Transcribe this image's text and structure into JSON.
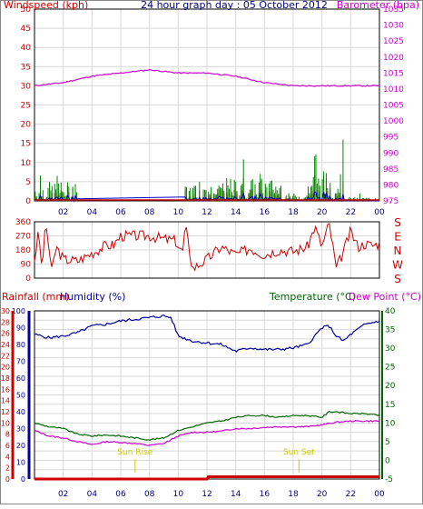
{
  "chart_data": [
    {
      "type": "line",
      "title": "24 hour graph day : 05 October 2012",
      "ylabel": "Windspeed (kph)",
      "y2label": "Barometer (hpa)",
      "ylim": [
        0,
        50
      ],
      "y2lim": [
        975,
        1035
      ],
      "yticks": [
        "0",
        "5",
        "10",
        "15",
        "20",
        "25",
        "30",
        "35",
        "40",
        "45",
        "50"
      ],
      "y2ticks": [
        "975",
        "980",
        "985",
        "990",
        "995",
        "1000",
        "1005",
        "1010",
        "1015",
        "1020",
        "1025",
        "1030",
        "1035"
      ],
      "xticks": [
        "02",
        "04",
        "06",
        "08",
        "10",
        "12",
        "14",
        "16",
        "18",
        "20",
        "22",
        "00"
      ],
      "colors": {
        "wind": "#cc0000",
        "gust": "#008800",
        "avgwind": "#0000cc",
        "barometer": "#cc00cc",
        "axis_left": "#cc0000",
        "axis_right": "#cc00cc",
        "title": "#000080"
      },
      "series": [
        {
          "name": "Barometer (hpa)",
          "x": [
            0,
            2,
            4,
            6,
            8,
            10,
            12,
            14,
            16,
            18,
            20,
            22,
            24
          ],
          "values": [
            1011,
            1012,
            1014,
            1015,
            1016,
            1015,
            1015,
            1014,
            1012,
            1011,
            1011,
            1011,
            1011
          ]
        },
        {
          "name": "Windspeed (kph)",
          "activity": [
            [
              0,
              3,
              5
            ],
            [
              6,
              10.4,
              0
            ],
            [
              10.4,
              13,
              4
            ],
            [
              13,
              17.5,
              6
            ],
            [
              17.5,
              19,
              2
            ],
            [
              19,
              21.5,
              8
            ],
            [
              21.5,
              24,
              1
            ]
          ]
        }
      ]
    },
    {
      "type": "line",
      "ylim": [
        0,
        360
      ],
      "yticks": [
        "0",
        "90",
        "180",
        "270",
        "360"
      ],
      "compass": [
        "S",
        "E",
        "N",
        "W",
        "S"
      ],
      "colors": {
        "line": "#cc0000"
      },
      "series": [
        {
          "name": "Wind direction",
          "x": [
            0,
            0.3,
            0.5,
            0.8,
            1.2,
            1.5,
            2,
            3,
            4,
            5,
            5.5,
            6,
            7,
            8,
            9,
            9.8,
            10.3,
            10.5,
            11,
            12,
            13,
            14,
            15,
            16,
            17,
            18,
            19,
            19.5,
            20,
            20.5,
            21,
            21.5,
            22,
            22.5,
            23,
            23.5,
            24
          ],
          "values": [
            120,
            300,
            60,
            350,
            40,
            200,
            120,
            110,
            160,
            210,
            210,
            270,
            270,
            270,
            250,
            240,
            160,
            330,
            60,
            120,
            200,
            150,
            190,
            150,
            180,
            170,
            200,
            330,
            200,
            350,
            60,
            170,
            300,
            200,
            220,
            210,
            220
          ]
        }
      ]
    },
    {
      "type": "line",
      "ylabel": "Rainfall (mm)",
      "y2label": "Humidity (%)",
      "y3label": "Temperature (°C)",
      "y4label": "Dew Point (°C)",
      "rain_ticks": [
        "0",
        "2",
        "4",
        "6",
        "8",
        "10",
        "12",
        "14",
        "16",
        "18",
        "20",
        "22",
        "24",
        "26",
        "28",
        "30"
      ],
      "hum_ticks": [
        "0",
        "10",
        "20",
        "30",
        "40",
        "50",
        "60",
        "70",
        "80",
        "90",
        "100"
      ],
      "temp_ticks": [
        "-5",
        "0",
        "5",
        "10",
        "15",
        "20",
        "25",
        "30",
        "35",
        "40"
      ],
      "xticks": [
        "02",
        "04",
        "06",
        "08",
        "10",
        "12",
        "14",
        "16",
        "18",
        "20",
        "22",
        "00"
      ],
      "annotations": [
        "Sun Rise",
        "Sun Set"
      ],
      "sunrise_hour": 7.0,
      "sunset_hour": 18.4,
      "colors": {
        "rain": "#cc0000",
        "humidity": "#000099",
        "temperature": "#006600",
        "dewpoint": "#cc00cc",
        "sun": "#cccc00"
      },
      "series": [
        {
          "name": "Humidity (%)",
          "x": [
            0,
            1,
            2,
            3,
            4,
            5,
            6,
            7,
            8,
            9,
            9.5,
            10,
            11,
            12,
            13,
            14,
            15,
            16,
            17,
            18,
            19,
            20,
            20.5,
            21,
            21.5,
            22,
            23,
            24
          ],
          "values": [
            86,
            84,
            85,
            87,
            91,
            92,
            94,
            95,
            96,
            97,
            96,
            85,
            82,
            81,
            80,
            76,
            78,
            77,
            77,
            78,
            80,
            90,
            91,
            85,
            82,
            86,
            92,
            94
          ]
        },
        {
          "name": "Temperature (°C)",
          "x": [
            0,
            1,
            2,
            3,
            4,
            5,
            6,
            7,
            8,
            9,
            10,
            11,
            12,
            13,
            14,
            15,
            16,
            17,
            18,
            19,
            20,
            20.5,
            21,
            22,
            23,
            24
          ],
          "values": [
            10,
            9,
            8.5,
            7,
            6.5,
            6.8,
            6.5,
            6,
            5.5,
            6,
            8,
            9,
            10,
            10.5,
            11.5,
            12,
            12,
            11.5,
            12,
            12,
            11.5,
            13,
            13,
            12.5,
            12.5,
            12
          ]
        },
        {
          "name": "Dew Point (°C)",
          "x": [
            0,
            1,
            2,
            3,
            4,
            5,
            6,
            7,
            8,
            9,
            10,
            11,
            12,
            13,
            14,
            15,
            16,
            17,
            18,
            19,
            20,
            21,
            22,
            23,
            24
          ],
          "values": [
            8,
            6.5,
            6,
            5,
            4.2,
            5,
            4.8,
            4.5,
            4,
            4.5,
            6.5,
            7.5,
            7.5,
            7.8,
            8.5,
            8.5,
            8.8,
            9,
            9,
            9,
            9.5,
            10.2,
            10.5,
            10.5,
            10.5
          ]
        },
        {
          "name": "Rainfall (mm)",
          "x": [
            0,
            12,
            12.1,
            24
          ],
          "values": [
            0,
            0,
            0.4,
            0.4
          ]
        }
      ]
    }
  ]
}
